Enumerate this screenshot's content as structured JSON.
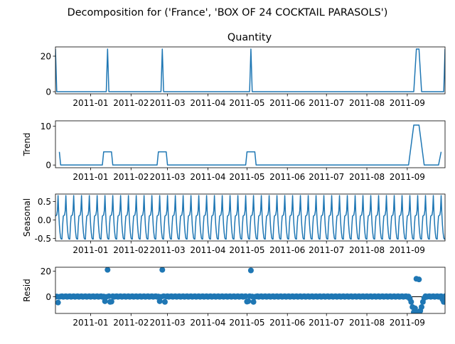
{
  "title": "Decomposition for ('France', 'BOX OF 24 COCKTAIL PARASOLS')",
  "x_tick_labels": [
    "2011-01",
    "2011-02",
    "2011-03",
    "2011-04",
    "2011-05",
    "2011-06",
    "2011-07",
    "2011-08",
    "2011-09"
  ],
  "colors": {
    "line": "#1f77b4",
    "zero_line": "#000000"
  },
  "chart_data": [
    {
      "type": "line",
      "panel": "observed",
      "title": "Quantity",
      "ylabel": "",
      "ylim": [
        -1.2,
        25.2
      ],
      "yticks": [
        0,
        20
      ],
      "x_range": [
        "2010-12-05",
        "2011-09-30"
      ],
      "values": [
        {
          "x": "2010-12-05",
          "y": 24
        },
        {
          "x": "2010-12-06",
          "y": 0
        },
        {
          "x": "2011-01-13",
          "y": 0
        },
        {
          "x": "2011-01-14",
          "y": 24
        },
        {
          "x": "2011-01-15",
          "y": 0
        },
        {
          "x": "2011-02-24",
          "y": 0
        },
        {
          "x": "2011-02-25",
          "y": 24
        },
        {
          "x": "2011-02-26",
          "y": 0
        },
        {
          "x": "2011-05-03",
          "y": 0
        },
        {
          "x": "2011-05-04",
          "y": 24
        },
        {
          "x": "2011-05-05",
          "y": 0
        },
        {
          "x": "2011-09-06",
          "y": 0
        },
        {
          "x": "2011-09-08",
          "y": 24
        },
        {
          "x": "2011-09-10",
          "y": 24
        },
        {
          "x": "2011-09-12",
          "y": 0
        },
        {
          "x": "2011-09-29",
          "y": 0
        },
        {
          "x": "2011-09-30",
          "y": 24
        }
      ]
    },
    {
      "type": "line",
      "panel": "trend",
      "title": "",
      "ylabel": "Trend",
      "ylim": [
        -0.7,
        11.4
      ],
      "yticks": [
        0,
        10
      ],
      "x_range": [
        "2010-12-05",
        "2011-09-30"
      ],
      "values": [
        {
          "x": "2010-12-08",
          "y": 3.4
        },
        {
          "x": "2010-12-09",
          "y": 0
        },
        {
          "x": "2011-01-10",
          "y": 0
        },
        {
          "x": "2011-01-11",
          "y": 3.4
        },
        {
          "x": "2011-01-17",
          "y": 3.4
        },
        {
          "x": "2011-01-18",
          "y": 0
        },
        {
          "x": "2011-02-21",
          "y": 0
        },
        {
          "x": "2011-02-22",
          "y": 3.4
        },
        {
          "x": "2011-02-28",
          "y": 3.4
        },
        {
          "x": "2011-03-01",
          "y": 0
        },
        {
          "x": "2011-04-30",
          "y": 0
        },
        {
          "x": "2011-05-01",
          "y": 3.4
        },
        {
          "x": "2011-05-07",
          "y": 3.4
        },
        {
          "x": "2011-05-08",
          "y": 0
        },
        {
          "x": "2011-09-02",
          "y": 0
        },
        {
          "x": "2011-09-06",
          "y": 10.3
        },
        {
          "x": "2011-09-10",
          "y": 10.3
        },
        {
          "x": "2011-09-14",
          "y": 0
        },
        {
          "x": "2011-09-25",
          "y": 0
        },
        {
          "x": "2011-09-27",
          "y": 3.4
        }
      ]
    },
    {
      "type": "line",
      "panel": "seasonal",
      "title": "",
      "ylabel": "Seasonal",
      "ylim": [
        -0.57,
        0.7
      ],
      "yticks": [
        -0.5,
        0.0,
        0.5
      ],
      "x_range": [
        "2010-12-05",
        "2011-09-30"
      ],
      "period_days": 7,
      "start": "2010-12-05",
      "pattern": [
        0.1,
        0.13,
        0.66,
        -0.13,
        -0.49,
        -0.52,
        0.1
      ],
      "sub_points_per_day": 2,
      "pattern_detail": [
        0.1,
        0.12,
        0.13,
        0.25,
        0.66,
        0.2,
        -0.13,
        -0.35,
        -0.49,
        -0.52,
        -0.52,
        -0.15
      ]
    },
    {
      "type": "scatter",
      "panel": "resid",
      "title": "",
      "ylabel": "Resid",
      "ylim": [
        -13,
        23
      ],
      "yticks": [
        0,
        20
      ],
      "zero_line": true,
      "x_range": [
        "2010-12-05",
        "2011-09-30"
      ],
      "baseline": 0.2,
      "spikes": [
        {
          "x": "2010-12-07",
          "y": -4.5
        },
        {
          "x": "2011-01-12",
          "y": -3.5
        },
        {
          "x": "2011-01-14",
          "y": 21
        },
        {
          "x": "2011-01-16",
          "y": -4
        },
        {
          "x": "2011-01-17",
          "y": -3.8
        },
        {
          "x": "2011-02-23",
          "y": -3.5
        },
        {
          "x": "2011-02-25",
          "y": 21
        },
        {
          "x": "2011-02-27",
          "y": -4
        },
        {
          "x": "2011-05-01",
          "y": -3.8
        },
        {
          "x": "2011-05-02",
          "y": -3.5
        },
        {
          "x": "2011-05-04",
          "y": 20.5
        },
        {
          "x": "2011-05-06",
          "y": -4
        },
        {
          "x": "2011-09-03",
          "y": -1.5
        },
        {
          "x": "2011-09-04",
          "y": -4
        },
        {
          "x": "2011-09-05",
          "y": -8
        },
        {
          "x": "2011-09-06",
          "y": -12
        },
        {
          "x": "2011-09-07",
          "y": -9
        },
        {
          "x": "2011-09-08",
          "y": 14
        },
        {
          "x": "2011-09-09",
          "y": -12
        },
        {
          "x": "2011-09-10",
          "y": 13.5
        },
        {
          "x": "2011-09-11",
          "y": -11
        },
        {
          "x": "2011-09-12",
          "y": -8
        },
        {
          "x": "2011-09-13",
          "y": -4
        },
        {
          "x": "2011-09-14",
          "y": -1
        },
        {
          "x": "2011-09-28",
          "y": -2
        },
        {
          "x": "2011-09-29",
          "y": -4
        }
      ]
    }
  ]
}
